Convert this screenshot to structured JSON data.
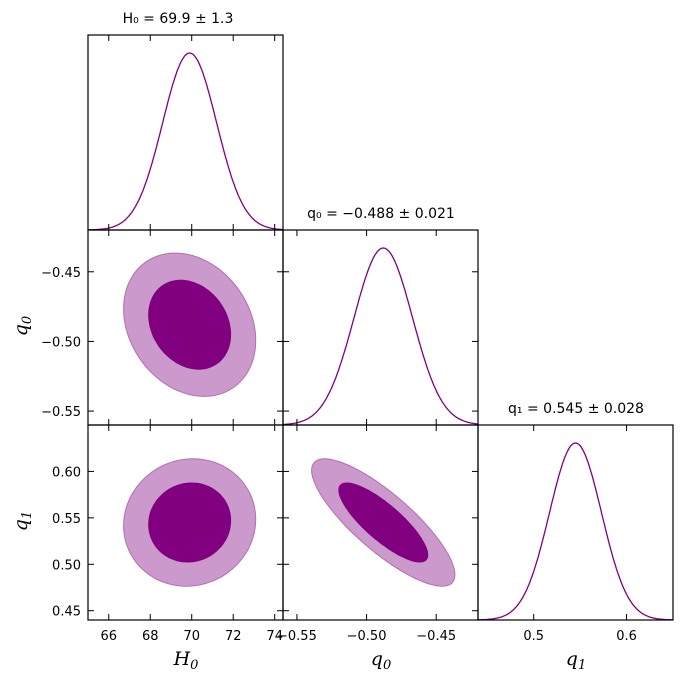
{
  "chart_data": {
    "type": "corner",
    "color": "#800080",
    "fill_color_inner": "#800080",
    "fill_color_outer": "#cc99cc",
    "parameters": [
      {
        "id": "H0",
        "label_base": "H",
        "label_sub": "0",
        "mean": 69.9,
        "sigma": 1.3,
        "title": "H₀ = 69.9 ± 1.3",
        "range": [
          65.0,
          74.4
        ],
        "ticks": [
          66,
          68,
          70,
          72,
          74
        ],
        "tick_labels": [
          "66",
          "68",
          "70",
          "72",
          "74"
        ]
      },
      {
        "id": "q0",
        "label_base": "q",
        "label_sub": "0",
        "mean": -0.488,
        "sigma": 0.021,
        "title": "q₀ = −0.488 ± 0.021",
        "range": [
          -0.56,
          -0.42
        ],
        "ticks": [
          -0.55,
          -0.5,
          -0.45
        ],
        "tick_labels": [
          "−0.55",
          "−0.50",
          "−0.45"
        ]
      },
      {
        "id": "q1",
        "label_base": "q",
        "label_sub": "1",
        "mean": 0.545,
        "sigma": 0.028,
        "title": "q₁ = 0.545 ± 0.028",
        "range": [
          0.44,
          0.65
        ],
        "ticks": [
          0.45,
          0.5,
          0.55,
          0.6
        ],
        "tick_labels": [
          "0.45",
          "0.50",
          "0.55",
          "0.60"
        ],
        "diag_ticks": [
          0.5,
          0.6
        ],
        "diag_tick_labels": [
          "0.5",
          "0.6"
        ]
      }
    ],
    "correlations": {
      "H0_q0": -0.22,
      "H0_q1": 0.05,
      "q0_q1": -0.82
    },
    "contour_levels": [
      "68%",
      "95%"
    ]
  }
}
